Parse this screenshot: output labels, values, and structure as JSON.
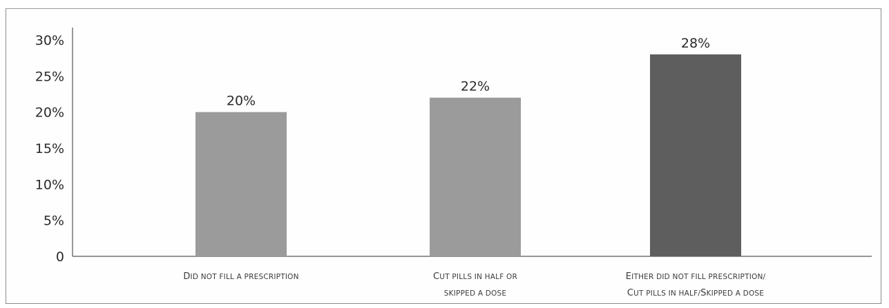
{
  "chart_data": {
    "type": "bar",
    "categories": [
      [
        "Did not fill a prescription"
      ],
      [
        "Cut pills in half or",
        "skipped a dose"
      ],
      [
        "Either did not fill prescription/",
        "Cut pills in half/Skipped a dose"
      ]
    ],
    "values": [
      20,
      22,
      28
    ],
    "data_labels": [
      "20%",
      "22%",
      "28%"
    ],
    "bar_colors": [
      "#9b9b9b",
      "#9b9b9b",
      "#5e5e5e"
    ],
    "ylim": [
      0,
      30
    ],
    "yticks": [
      0,
      5,
      10,
      15,
      20,
      25,
      30
    ],
    "ytick_labels": [
      "0",
      "5%",
      "10%",
      "15%",
      "20%",
      "25%",
      "30%"
    ],
    "grid": false,
    "title": "",
    "xlabel": "",
    "ylabel": ""
  }
}
